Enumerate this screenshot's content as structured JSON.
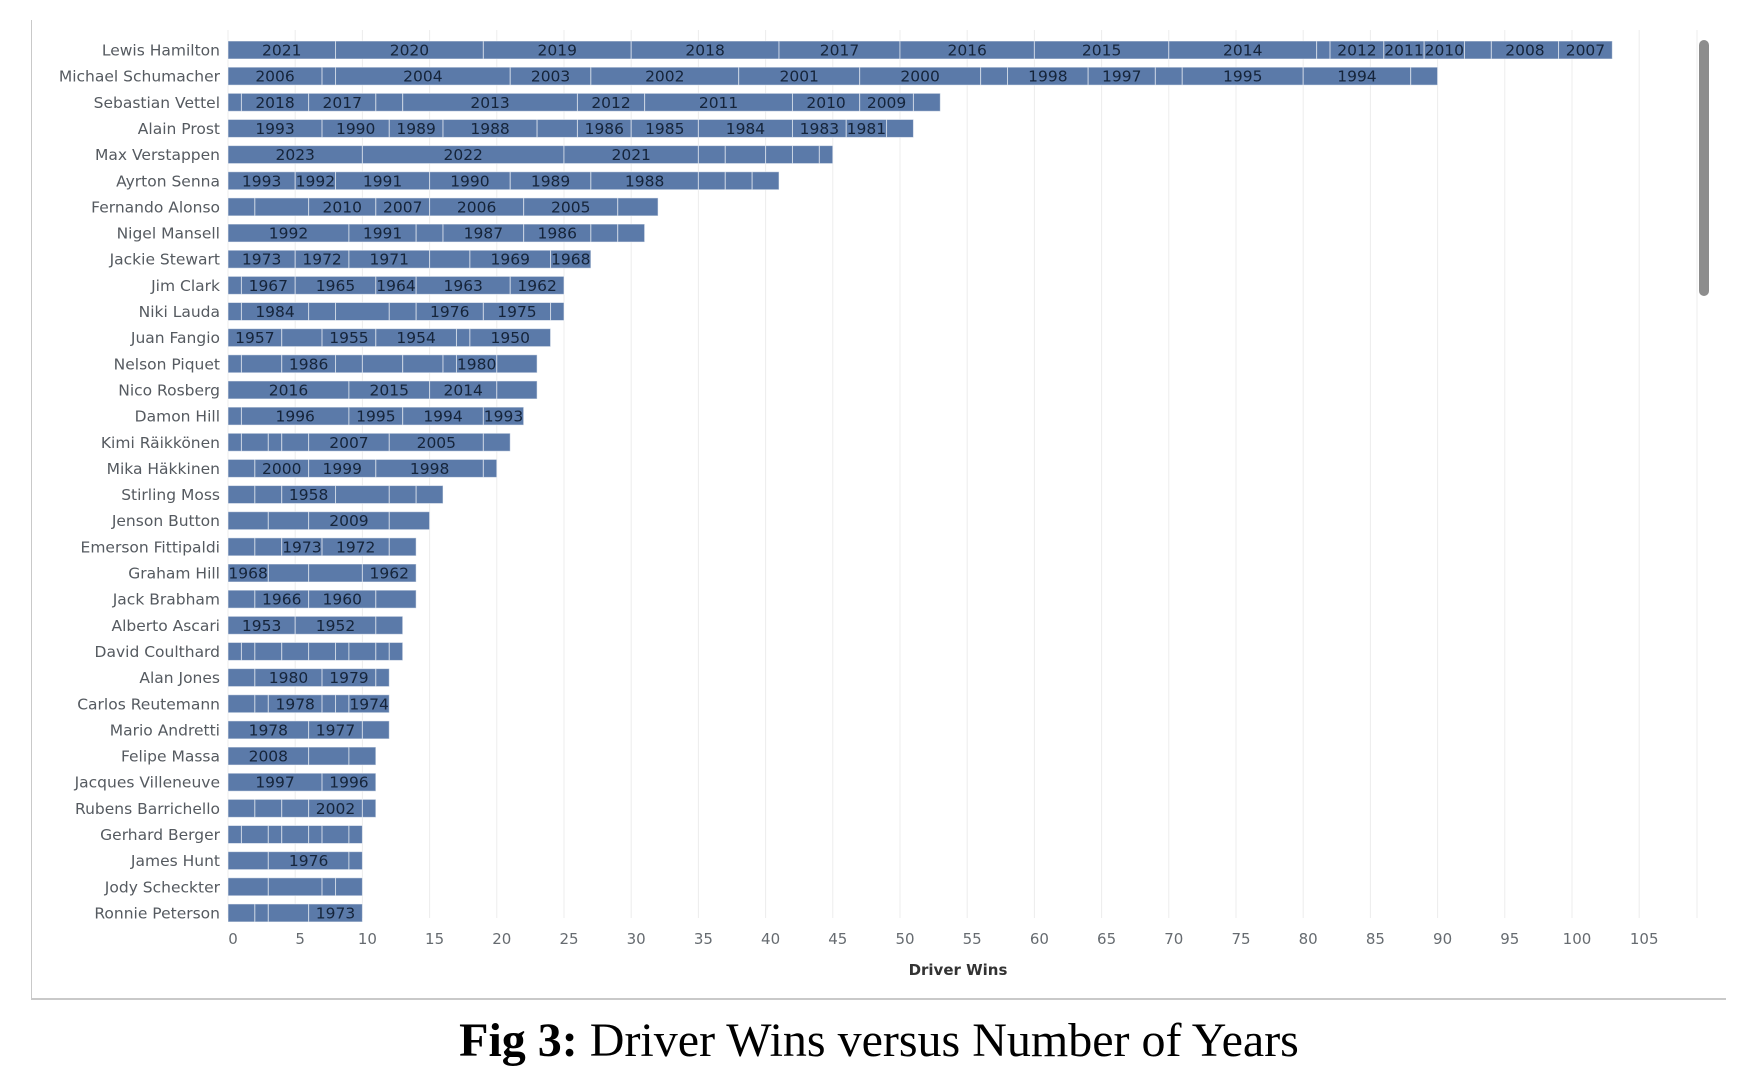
{
  "caption": {
    "prefix": "Fig 3:",
    "text": " Driver Wins versus Number of Years"
  },
  "chart_data": {
    "type": "bar",
    "orientation": "horizontal",
    "stacked": true,
    "xlabel": "Driver Wins",
    "xlim": [
      0,
      110
    ],
    "xticks": [
      0,
      5,
      10,
      15,
      20,
      25,
      30,
      35,
      40,
      45,
      50,
      55,
      60,
      65,
      70,
      75,
      80,
      85,
      90,
      95,
      100,
      105
    ],
    "grid": true,
    "bar_color": "#5b7aa9",
    "drivers": [
      {
        "name": "Lewis Hamilton",
        "segments": [
          [
            2021,
            8
          ],
          [
            2020,
            11
          ],
          [
            2019,
            11
          ],
          [
            2018,
            11
          ],
          [
            2017,
            9
          ],
          [
            2016,
            10
          ],
          [
            2015,
            10
          ],
          [
            2014,
            11
          ],
          [
            null,
            1
          ],
          [
            2012,
            4
          ],
          [
            2011,
            3
          ],
          [
            2010,
            3
          ],
          [
            null,
            2
          ],
          [
            2008,
            5
          ],
          [
            2007,
            4
          ]
        ]
      },
      {
        "name": "Michael Schumacher",
        "segments": [
          [
            2006,
            7
          ],
          [
            null,
            1
          ],
          [
            2004,
            13
          ],
          [
            2003,
            6
          ],
          [
            2002,
            11
          ],
          [
            2001,
            9
          ],
          [
            2000,
            9
          ],
          [
            null,
            2
          ],
          [
            1998,
            6
          ],
          [
            1997,
            5
          ],
          [
            null,
            2
          ],
          [
            1995,
            9
          ],
          [
            1994,
            8
          ],
          [
            null,
            2
          ]
        ]
      },
      {
        "name": "Sebastian Vettel",
        "segments": [
          [
            null,
            1
          ],
          [
            2018,
            5
          ],
          [
            2017,
            5
          ],
          [
            null,
            2
          ],
          [
            2013,
            13
          ],
          [
            2012,
            5
          ],
          [
            2011,
            11
          ],
          [
            2010,
            5
          ],
          [
            2009,
            4
          ],
          [
            null,
            2
          ]
        ]
      },
      {
        "name": "Alain Prost",
        "segments": [
          [
            1993,
            7
          ],
          [
            1990,
            5
          ],
          [
            1989,
            4
          ],
          [
            1988,
            7
          ],
          [
            null,
            3
          ],
          [
            1986,
            4
          ],
          [
            1985,
            5
          ],
          [
            1984,
            7
          ],
          [
            1983,
            4
          ],
          [
            1981,
            3
          ],
          [
            null,
            2
          ]
        ]
      },
      {
        "name": "Max Verstappen",
        "segments": [
          [
            2023,
            10
          ],
          [
            2022,
            15
          ],
          [
            2021,
            10
          ],
          [
            null,
            2
          ],
          [
            null,
            3
          ],
          [
            null,
            2
          ],
          [
            null,
            2
          ],
          [
            null,
            1
          ]
        ]
      },
      {
        "name": "Ayrton Senna",
        "segments": [
          [
            1993,
            5
          ],
          [
            1992,
            3
          ],
          [
            1991,
            7
          ],
          [
            1990,
            6
          ],
          [
            1989,
            6
          ],
          [
            1988,
            8
          ],
          [
            null,
            2
          ],
          [
            null,
            2
          ],
          [
            null,
            2
          ]
        ]
      },
      {
        "name": "Fernando Alonso",
        "segments": [
          [
            null,
            2
          ],
          [
            null,
            4
          ],
          [
            2010,
            5
          ],
          [
            2007,
            4
          ],
          [
            2006,
            7
          ],
          [
            2005,
            7
          ],
          [
            null,
            3
          ]
        ]
      },
      {
        "name": "Nigel Mansell",
        "segments": [
          [
            1992,
            9
          ],
          [
            1991,
            5
          ],
          [
            null,
            2
          ],
          [
            1987,
            6
          ],
          [
            1986,
            5
          ],
          [
            null,
            2
          ],
          [
            null,
            2
          ]
        ]
      },
      {
        "name": "Jackie Stewart",
        "segments": [
          [
            1973,
            5
          ],
          [
            1972,
            4
          ],
          [
            1971,
            6
          ],
          [
            null,
            3
          ],
          [
            1969,
            6
          ],
          [
            1968,
            3
          ]
        ]
      },
      {
        "name": "Jim Clark",
        "segments": [
          [
            null,
            1
          ],
          [
            1967,
            4
          ],
          [
            1965,
            6
          ],
          [
            1964,
            3
          ],
          [
            1963,
            7
          ],
          [
            1962,
            4
          ]
        ]
      },
      {
        "name": "Niki Lauda",
        "segments": [
          [
            null,
            1
          ],
          [
            1984,
            5
          ],
          [
            null,
            2
          ],
          [
            null,
            4
          ],
          [
            null,
            2
          ],
          [
            1976,
            5
          ],
          [
            1975,
            5
          ],
          [
            null,
            1
          ]
        ]
      },
      {
        "name": "Juan Fangio",
        "segments": [
          [
            1957,
            4
          ],
          [
            null,
            3
          ],
          [
            1955,
            4
          ],
          [
            1954,
            6
          ],
          [
            null,
            1
          ],
          [
            1950,
            6
          ]
        ]
      },
      {
        "name": "Nelson Piquet",
        "segments": [
          [
            null,
            1
          ],
          [
            null,
            3
          ],
          [
            1986,
            4
          ],
          [
            null,
            2
          ],
          [
            null,
            3
          ],
          [
            null,
            3
          ],
          [
            null,
            1
          ],
          [
            1980,
            3
          ],
          [
            null,
            3
          ]
        ]
      },
      {
        "name": "Nico Rosberg",
        "segments": [
          [
            2016,
            9
          ],
          [
            2015,
            6
          ],
          [
            2014,
            5
          ],
          [
            null,
            3
          ]
        ]
      },
      {
        "name": "Damon Hill",
        "segments": [
          [
            null,
            1
          ],
          [
            1996,
            8
          ],
          [
            1995,
            4
          ],
          [
            1994,
            6
          ],
          [
            1993,
            3
          ]
        ]
      },
      {
        "name": "Kimi Räikkönen",
        "segments": [
          [
            null,
            1
          ],
          [
            null,
            2
          ],
          [
            null,
            1
          ],
          [
            null,
            2
          ],
          [
            2007,
            6
          ],
          [
            2005,
            7
          ],
          [
            null,
            2
          ]
        ]
      },
      {
        "name": "Mika Häkkinen",
        "segments": [
          [
            null,
            2
          ],
          [
            2000,
            4
          ],
          [
            1999,
            5
          ],
          [
            1998,
            8
          ],
          [
            null,
            1
          ]
        ]
      },
      {
        "name": "Stirling Moss",
        "segments": [
          [
            null,
            2
          ],
          [
            null,
            2
          ],
          [
            1958,
            4
          ],
          [
            null,
            4
          ],
          [
            null,
            2
          ],
          [
            null,
            2
          ]
        ]
      },
      {
        "name": "Jenson Button",
        "segments": [
          [
            null,
            3
          ],
          [
            null,
            3
          ],
          [
            2009,
            6
          ],
          [
            null,
            3
          ]
        ]
      },
      {
        "name": "Emerson Fittipaldi",
        "segments": [
          [
            null,
            2
          ],
          [
            null,
            2
          ],
          [
            1973,
            3
          ],
          [
            1972,
            5
          ],
          [
            null,
            2
          ]
        ]
      },
      {
        "name": "Graham Hill",
        "segments": [
          [
            1968,
            3
          ],
          [
            null,
            3
          ],
          [
            null,
            4
          ],
          [
            1962,
            4
          ]
        ]
      },
      {
        "name": "Jack Brabham",
        "segments": [
          [
            null,
            2
          ],
          [
            1966,
            4
          ],
          [
            1960,
            5
          ],
          [
            null,
            3
          ]
        ]
      },
      {
        "name": "Alberto Ascari",
        "segments": [
          [
            1953,
            5
          ],
          [
            1952,
            6
          ],
          [
            null,
            2
          ]
        ]
      },
      {
        "name": "David Coulthard",
        "segments": [
          [
            null,
            1
          ],
          [
            null,
            1
          ],
          [
            null,
            2
          ],
          [
            null,
            2
          ],
          [
            null,
            2
          ],
          [
            null,
            1
          ],
          [
            null,
            2
          ],
          [
            null,
            1
          ],
          [
            null,
            1
          ]
        ]
      },
      {
        "name": "Alan Jones",
        "segments": [
          [
            null,
            2
          ],
          [
            1980,
            5
          ],
          [
            1979,
            4
          ],
          [
            null,
            1
          ]
        ]
      },
      {
        "name": "Carlos Reutemann",
        "segments": [
          [
            null,
            2
          ],
          [
            null,
            1
          ],
          [
            1978,
            4
          ],
          [
            null,
            1
          ],
          [
            null,
            1
          ],
          [
            1974,
            3
          ]
        ]
      },
      {
        "name": "Mario Andretti",
        "segments": [
          [
            1978,
            6
          ],
          [
            1977,
            4
          ],
          [
            null,
            2
          ]
        ]
      },
      {
        "name": "Felipe Massa",
        "segments": [
          [
            2008,
            6
          ],
          [
            null,
            3
          ],
          [
            null,
            2
          ]
        ]
      },
      {
        "name": "Jacques Villeneuve",
        "segments": [
          [
            1997,
            7
          ],
          [
            1996,
            4
          ]
        ]
      },
      {
        "name": "Rubens Barrichello",
        "segments": [
          [
            null,
            2
          ],
          [
            null,
            2
          ],
          [
            null,
            2
          ],
          [
            2002,
            4
          ],
          [
            null,
            1
          ]
        ]
      },
      {
        "name": "Gerhard Berger",
        "segments": [
          [
            null,
            1
          ],
          [
            null,
            2
          ],
          [
            null,
            1
          ],
          [
            null,
            2
          ],
          [
            null,
            1
          ],
          [
            null,
            2
          ],
          [
            null,
            1
          ]
        ]
      },
      {
        "name": "James Hunt",
        "segments": [
          [
            null,
            3
          ],
          [
            1976,
            6
          ],
          [
            null,
            1
          ]
        ]
      },
      {
        "name": "Jody Scheckter",
        "segments": [
          [
            null,
            3
          ],
          [
            null,
            4
          ],
          [
            null,
            1
          ],
          [
            null,
            2
          ]
        ]
      },
      {
        "name": "Ronnie Peterson",
        "segments": [
          [
            null,
            2
          ],
          [
            null,
            1
          ],
          [
            null,
            3
          ],
          [
            1973,
            4
          ]
        ]
      }
    ]
  }
}
